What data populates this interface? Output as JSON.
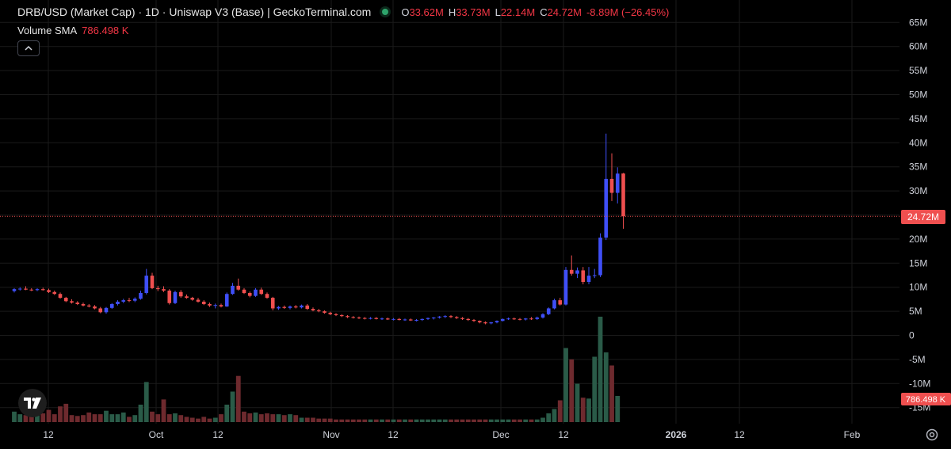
{
  "header": {
    "title": "DRB/USD (Market Cap) · 1D · Uniswap V3 (Base) | GeckoTerminal.com",
    "ohlc": {
      "open_label": "O",
      "open": "33.62M",
      "high_label": "H",
      "high": "33.73M",
      "low_label": "L",
      "low": "22.14M",
      "close_label": "C",
      "close": "24.72M",
      "change": "-8.89M (−26.45%)"
    },
    "volume_label": "Volume SMA",
    "volume_value": "786.498 K",
    "collapse_icon": "chevron-up-icon"
  },
  "price_tag": "24.72M",
  "volume_tag": "786.498 K",
  "colors": {
    "background": "#000000",
    "up": "#3f4ff7",
    "down": "#ef4f4f",
    "vol_up": "#2a5b48",
    "vol_down": "#6e2a2e",
    "last_price_line": "#ef4f4f"
  },
  "chart_data": {
    "type": "candlestick",
    "interval": "1D",
    "y_axis": {
      "ticks": [
        "65M",
        "60M",
        "55M",
        "50M",
        "45M",
        "40M",
        "35M",
        "30M",
        "25M",
        "20M",
        "15M",
        "10M",
        "5M",
        "0",
        "-5M",
        "-10M",
        "-15M"
      ],
      "range": [
        -18,
        67
      ]
    },
    "x_axis": {
      "ticks": [
        "12",
        "Oct",
        "12",
        "Nov",
        "12",
        "Dec",
        "12",
        "2026",
        "12",
        "Feb"
      ]
    },
    "last_close": 24.72,
    "series": [
      {
        "name": "Market Cap",
        "ohlc": [
          [
            9.2,
            9.8,
            8.9,
            9.6
          ],
          [
            9.6,
            10.0,
            9.3,
            9.7
          ],
          [
            9.7,
            10.2,
            9.4,
            9.5
          ],
          [
            9.5,
            9.8,
            9.2,
            9.4
          ],
          [
            9.4,
            9.8,
            9.2,
            9.6
          ],
          [
            9.6,
            9.9,
            9.3,
            9.4
          ],
          [
            9.4,
            9.7,
            8.8,
            9.0
          ],
          [
            9.0,
            9.3,
            8.4,
            8.6
          ],
          [
            8.6,
            8.9,
            7.6,
            7.8
          ],
          [
            7.8,
            8.0,
            6.9,
            7.1
          ],
          [
            7.1,
            7.5,
            6.6,
            6.8
          ],
          [
            6.8,
            7.1,
            6.3,
            6.5
          ],
          [
            6.5,
            6.8,
            6.0,
            6.2
          ],
          [
            6.2,
            6.5,
            5.8,
            6.0
          ],
          [
            6.0,
            6.3,
            5.4,
            5.6
          ],
          [
            5.6,
            5.9,
            4.6,
            4.8
          ],
          [
            4.8,
            5.9,
            4.5,
            5.7
          ],
          [
            5.7,
            6.7,
            5.5,
            6.5
          ],
          [
            6.5,
            7.3,
            6.2,
            7.0
          ],
          [
            7.0,
            7.6,
            6.7,
            7.3
          ],
          [
            7.3,
            7.8,
            6.9,
            7.2
          ],
          [
            7.2,
            7.9,
            6.9,
            7.6
          ],
          [
            7.6,
            9.3,
            7.4,
            8.8
          ],
          [
            8.8,
            13.8,
            8.5,
            12.4
          ],
          [
            12.4,
            13.0,
            9.6,
            9.8
          ],
          [
            9.8,
            10.3,
            9.2,
            9.6
          ],
          [
            9.6,
            10.2,
            9.0,
            9.3
          ],
          [
            9.3,
            9.6,
            6.4,
            6.7
          ],
          [
            6.7,
            9.3,
            6.5,
            9.0
          ],
          [
            9.0,
            9.4,
            7.8,
            8.1
          ],
          [
            8.1,
            8.5,
            7.6,
            7.8
          ],
          [
            7.8,
            8.0,
            7.2,
            7.4
          ],
          [
            7.4,
            7.8,
            6.8,
            7.0
          ],
          [
            7.0,
            7.3,
            6.3,
            6.5
          ],
          [
            6.5,
            6.8,
            5.9,
            6.2
          ],
          [
            6.2,
            6.6,
            5.6,
            6.3
          ],
          [
            6.3,
            6.6,
            5.8,
            6.0
          ],
          [
            6.0,
            8.9,
            5.9,
            8.6
          ],
          [
            8.6,
            10.9,
            8.4,
            10.3
          ],
          [
            10.3,
            11.8,
            9.3,
            9.5
          ],
          [
            9.5,
            9.8,
            8.6,
            8.8
          ],
          [
            8.8,
            9.1,
            7.9,
            8.2
          ],
          [
            8.2,
            9.8,
            8.0,
            9.5
          ],
          [
            9.5,
            9.9,
            8.4,
            8.6
          ],
          [
            8.6,
            8.9,
            7.6,
            7.8
          ],
          [
            7.8,
            8.0,
            5.2,
            5.6
          ],
          [
            5.6,
            6.1,
            5.3,
            5.9
          ],
          [
            5.9,
            6.2,
            5.5,
            5.7
          ],
          [
            5.7,
            6.2,
            5.4,
            6.0
          ],
          [
            6.0,
            6.3,
            5.6,
            5.8
          ],
          [
            5.8,
            6.4,
            5.6,
            6.2
          ],
          [
            6.2,
            6.5,
            5.3,
            5.5
          ],
          [
            5.5,
            5.8,
            5.0,
            5.2
          ],
          [
            5.2,
            5.5,
            4.8,
            5.0
          ],
          [
            5.0,
            5.2,
            4.5,
            4.7
          ],
          [
            4.7,
            4.9,
            4.2,
            4.4
          ],
          [
            4.4,
            4.6,
            4.0,
            4.2
          ],
          [
            4.2,
            4.4,
            3.8,
            4.0
          ],
          [
            4.0,
            4.2,
            3.6,
            3.8
          ],
          [
            3.8,
            4.0,
            3.5,
            3.7
          ],
          [
            3.7,
            3.9,
            3.4,
            3.6
          ],
          [
            3.6,
            3.8,
            3.3,
            3.5
          ],
          [
            3.5,
            3.8,
            3.3,
            3.6
          ],
          [
            3.6,
            3.8,
            3.3,
            3.4
          ],
          [
            3.4,
            3.7,
            3.2,
            3.5
          ],
          [
            3.5,
            3.7,
            3.2,
            3.3
          ],
          [
            3.3,
            3.6,
            3.1,
            3.4
          ],
          [
            3.4,
            3.6,
            3.1,
            3.2
          ],
          [
            3.2,
            3.5,
            3.0,
            3.3
          ],
          [
            3.3,
            3.5,
            3.0,
            3.1
          ],
          [
            3.1,
            3.4,
            2.9,
            3.2
          ],
          [
            3.2,
            3.5,
            3.0,
            3.4
          ],
          [
            3.4,
            3.7,
            3.2,
            3.6
          ],
          [
            3.6,
            3.8,
            3.3,
            3.7
          ],
          [
            3.7,
            4.0,
            3.5,
            3.9
          ],
          [
            3.9,
            4.2,
            3.6,
            4.0
          ],
          [
            4.0,
            4.2,
            3.6,
            3.8
          ],
          [
            3.8,
            4.0,
            3.4,
            3.6
          ],
          [
            3.6,
            3.8,
            3.2,
            3.4
          ],
          [
            3.4,
            3.6,
            3.0,
            3.2
          ],
          [
            3.2,
            3.4,
            2.8,
            3.0
          ],
          [
            3.0,
            3.1,
            2.5,
            2.7
          ],
          [
            2.7,
            2.9,
            2.3,
            2.5
          ],
          [
            2.5,
            2.8,
            2.3,
            2.7
          ],
          [
            2.7,
            3.1,
            2.5,
            3.0
          ],
          [
            3.0,
            3.5,
            2.9,
            3.4
          ],
          [
            3.4,
            3.7,
            3.2,
            3.5
          ],
          [
            3.5,
            3.7,
            3.2,
            3.4
          ],
          [
            3.4,
            3.6,
            3.1,
            3.3
          ],
          [
            3.3,
            3.6,
            3.1,
            3.5
          ],
          [
            3.5,
            3.8,
            3.2,
            3.4
          ],
          [
            3.4,
            3.9,
            3.2,
            3.7
          ],
          [
            3.7,
            4.6,
            3.5,
            4.4
          ],
          [
            4.4,
            5.8,
            4.2,
            5.6
          ],
          [
            5.6,
            7.6,
            5.4,
            7.3
          ],
          [
            7.3,
            7.8,
            6.2,
            6.4
          ],
          [
            6.4,
            14.2,
            6.2,
            13.6
          ],
          [
            13.6,
            16.6,
            12.4,
            12.8
          ],
          [
            12.8,
            14.1,
            11.9,
            13.5
          ],
          [
            13.5,
            14.2,
            10.6,
            11.1
          ],
          [
            11.1,
            14.2,
            10.6,
            12.4
          ],
          [
            12.4,
            13.8,
            11.9,
            12.5
          ],
          [
            12.5,
            21.2,
            12.1,
            20.3
          ],
          [
            20.3,
            41.9,
            19.8,
            32.5
          ],
          [
            32.5,
            37.8,
            27.9,
            29.6
          ],
          [
            29.6,
            34.9,
            27.4,
            33.6
          ],
          [
            33.62,
            33.73,
            22.14,
            24.72
          ]
        ]
      },
      {
        "name": "Volume",
        "values": [
          1.2,
          0.9,
          0.8,
          0.9,
          1.2,
          1.0,
          1.4,
          0.9,
          1.8,
          2.1,
          0.8,
          0.7,
          0.8,
          1.1,
          0.9,
          0.9,
          1.3,
          0.9,
          0.9,
          1.1,
          0.6,
          0.8,
          2.0,
          4.6,
          1.2,
          0.9,
          2.6,
          0.9,
          1.0,
          0.8,
          0.6,
          0.5,
          0.4,
          0.6,
          0.4,
          0.5,
          0.9,
          2.0,
          3.5,
          5.3,
          1.2,
          1.0,
          1.1,
          0.9,
          1.0,
          0.9,
          0.9,
          0.8,
          0.9,
          0.8,
          0.5,
          0.5,
          0.5,
          0.4,
          0.4,
          0.4,
          0.3,
          0.3,
          0.3,
          0.3,
          0.3,
          0.3,
          0.3,
          0.3,
          0.3,
          0.3,
          0.3,
          0.3,
          0.3,
          0.3,
          0.3,
          0.3,
          0.3,
          0.3,
          0.3,
          0.3,
          0.3,
          0.3,
          0.3,
          0.3,
          0.3,
          0.3,
          0.3,
          0.3,
          0.3,
          0.3,
          0.3,
          0.3,
          0.3,
          0.3,
          0.3,
          0.3,
          0.5,
          1.0,
          1.5,
          2.5,
          8.5,
          7.2,
          4.4,
          2.8,
          2.7,
          7.5,
          12.1,
          8.0,
          6.5,
          3.0
        ]
      }
    ]
  }
}
